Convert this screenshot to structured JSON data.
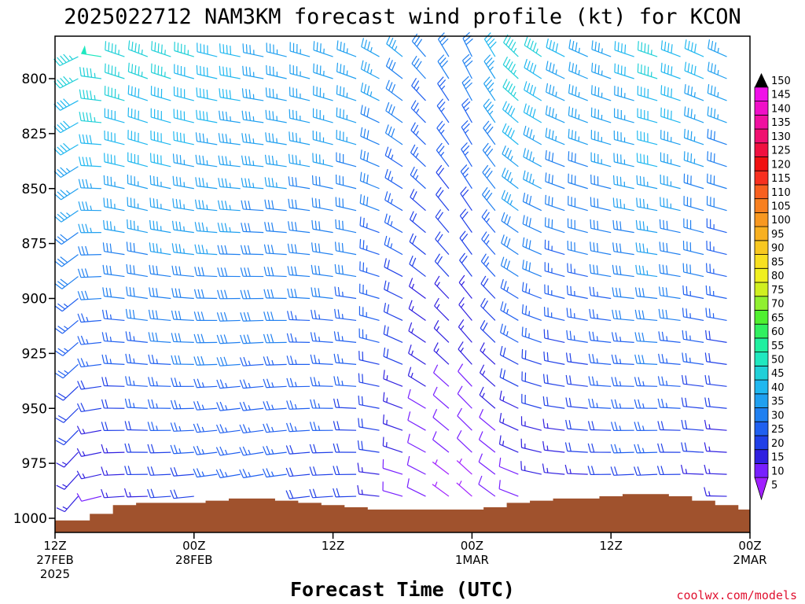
{
  "page": {
    "credit": "coolwx.com/models"
  },
  "chart_data": {
    "type": "wind-barb-time-height",
    "title": "2025022712 NAM3KM forecast wind profile (kt) for KCON",
    "xlabel": "Forecast Time (UTC)",
    "ylabel": "",
    "x_range_hours": [
      0,
      60
    ],
    "ylim": [
      1007,
      776
    ],
    "y_ticks": [
      800,
      825,
      850,
      875,
      900,
      925,
      950,
      975,
      1000
    ],
    "x_ticks": [
      {
        "hour": 0,
        "l1": "12Z",
        "l2": "27FEB",
        "l3": "2025"
      },
      {
        "hour": 12,
        "l1": "00Z",
        "l2": "28FEB",
        "l3": ""
      },
      {
        "hour": 24,
        "l1": "12Z",
        "l2": "",
        "l3": ""
      },
      {
        "hour": 36,
        "l1": "00Z",
        "l2": "1MAR",
        "l3": ""
      },
      {
        "hour": 48,
        "l1": "12Z",
        "l2": "",
        "l3": ""
      },
      {
        "hour": 60,
        "l1": "00Z",
        "l2": "2MAR",
        "l3": ""
      }
    ],
    "colorbar": {
      "labels": [
        "5",
        "10",
        "15",
        "20",
        "25",
        "30",
        "35",
        "40",
        "45",
        "50",
        "55",
        "60",
        "65",
        "70",
        "75",
        "80",
        "85",
        "90",
        "95",
        "100",
        "105",
        "110",
        "115",
        "120",
        "125",
        "130",
        "135",
        "140",
        "145",
        "150"
      ],
      "colors": [
        "#a020ff",
        "#7820ff",
        "#3020e0",
        "#2040e8",
        "#2060f0",
        "#2080f0",
        "#20a0f0",
        "#20b8f0",
        "#20d0d8",
        "#20e8c0",
        "#20f0a0",
        "#30f060",
        "#50f030",
        "#90f030",
        "#d0f020",
        "#f0f020",
        "#f8e020",
        "#f8c820",
        "#f8b020",
        "#f89820",
        "#f88020",
        "#f86020",
        "#f83020",
        "#f01010",
        "#f01040",
        "#f01070",
        "#f010a0",
        "#f010c8",
        "#f010e8",
        "#f020f8"
      ]
    },
    "pressure_levels": [
      780,
      790,
      800,
      810,
      820,
      830,
      840,
      850,
      860,
      870,
      880,
      890,
      900,
      910,
      920,
      930,
      940,
      950,
      960,
      970,
      980,
      990,
      1000
    ],
    "times_hours": [
      0,
      2,
      4,
      6,
      8,
      10,
      12,
      14,
      16,
      18,
      20,
      22,
      24,
      26,
      28,
      30,
      32,
      34,
      36,
      38,
      40,
      42,
      44,
      46,
      48,
      50,
      52,
      54,
      56,
      58,
      60
    ],
    "surface_pressure": [
      1001,
      1001,
      998,
      994,
      993,
      993,
      993,
      992,
      991,
      991,
      992,
      993,
      994,
      995,
      996,
      996,
      996,
      996,
      996,
      995,
      993,
      992,
      991,
      991,
      990,
      989,
      989,
      990,
      992,
      994,
      996
    ],
    "wind_direction_by_time": [
      220,
      245,
      280,
      290,
      292,
      290,
      288,
      285,
      283,
      283,
      285,
      287,
      290,
      292,
      300,
      310,
      320,
      330,
      335,
      330,
      315,
      305,
      298,
      295,
      292,
      290,
      290,
      292,
      295,
      295,
      300
    ],
    "speed_low_by_time": [
      18,
      12,
      10,
      12,
      16,
      18,
      20,
      22,
      22,
      22,
      22,
      20,
      20,
      18,
      15,
      10,
      7,
      5,
      5,
      6,
      8,
      10,
      12,
      15,
      18,
      20,
      20,
      18,
      15,
      12,
      12
    ],
    "speed_high_by_time": [
      38,
      46,
      50,
      48,
      46,
      45,
      44,
      42,
      40,
      38,
      38,
      38,
      38,
      37,
      36,
      34,
      30,
      30,
      32,
      40,
      48,
      45,
      40,
      38,
      38,
      40,
      45,
      42,
      40,
      38,
      42
    ]
  }
}
